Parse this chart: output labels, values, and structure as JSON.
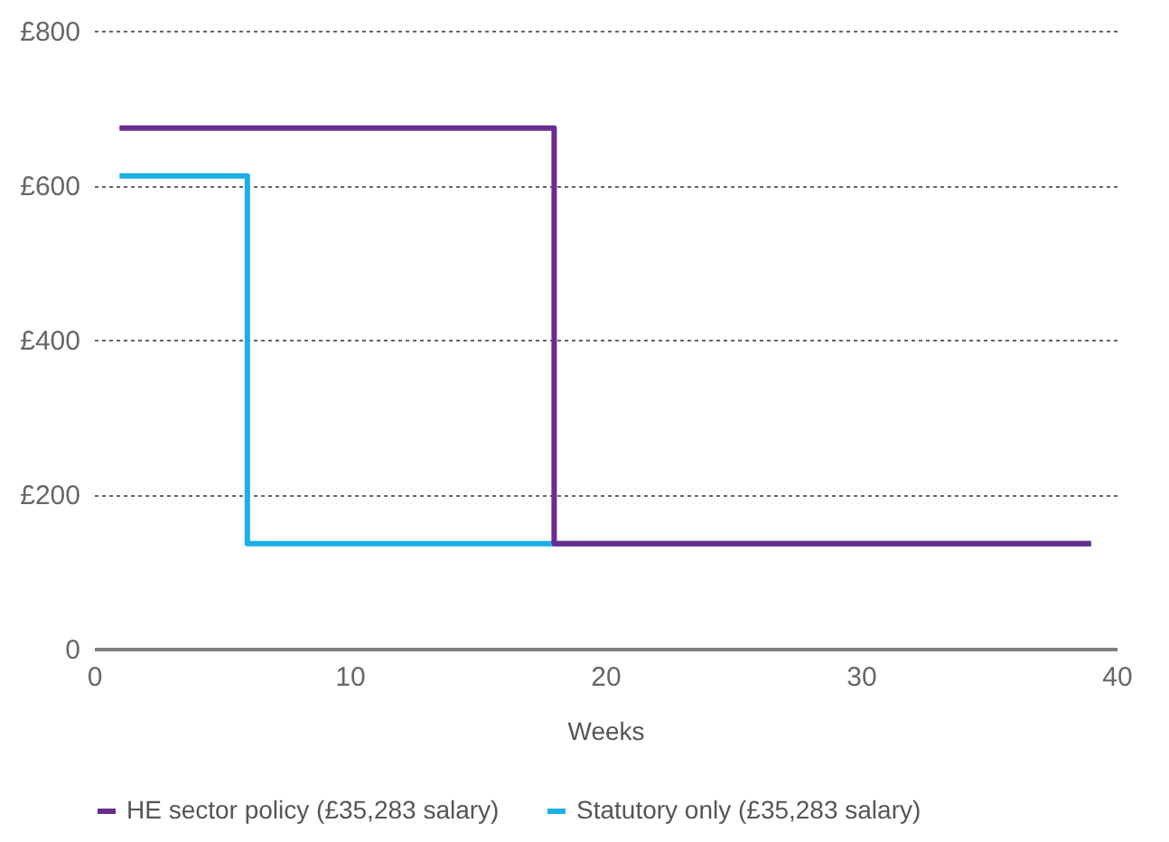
{
  "chart_data": {
    "type": "step",
    "xlabel": "Weeks",
    "xlim": [
      0,
      40
    ],
    "xticks": [
      0,
      10,
      20,
      30,
      40
    ],
    "ylim": [
      0,
      800
    ],
    "yticks": [
      {
        "value": 0,
        "label": "0"
      },
      {
        "value": 200,
        "label": "£200"
      },
      {
        "value": 400,
        "label": "£400"
      },
      {
        "value": 600,
        "label": "£600"
      },
      {
        "value": 800,
        "label": "£800"
      }
    ],
    "grid": "y",
    "legend": "bottom",
    "line_style": "solid",
    "marker": "none",
    "series": [
      {
        "name": "Statutory only (£35,283 salary)",
        "color": "#1ab0e6",
        "x": [
          1,
          6,
          39
        ],
        "values": [
          612,
          136,
          136
        ]
      },
      {
        "name": "HE sector policy (£35,283 salary)",
        "color": "#6a2c91",
        "x": [
          1,
          18,
          39
        ],
        "values": [
          674,
          136,
          136
        ]
      }
    ]
  }
}
